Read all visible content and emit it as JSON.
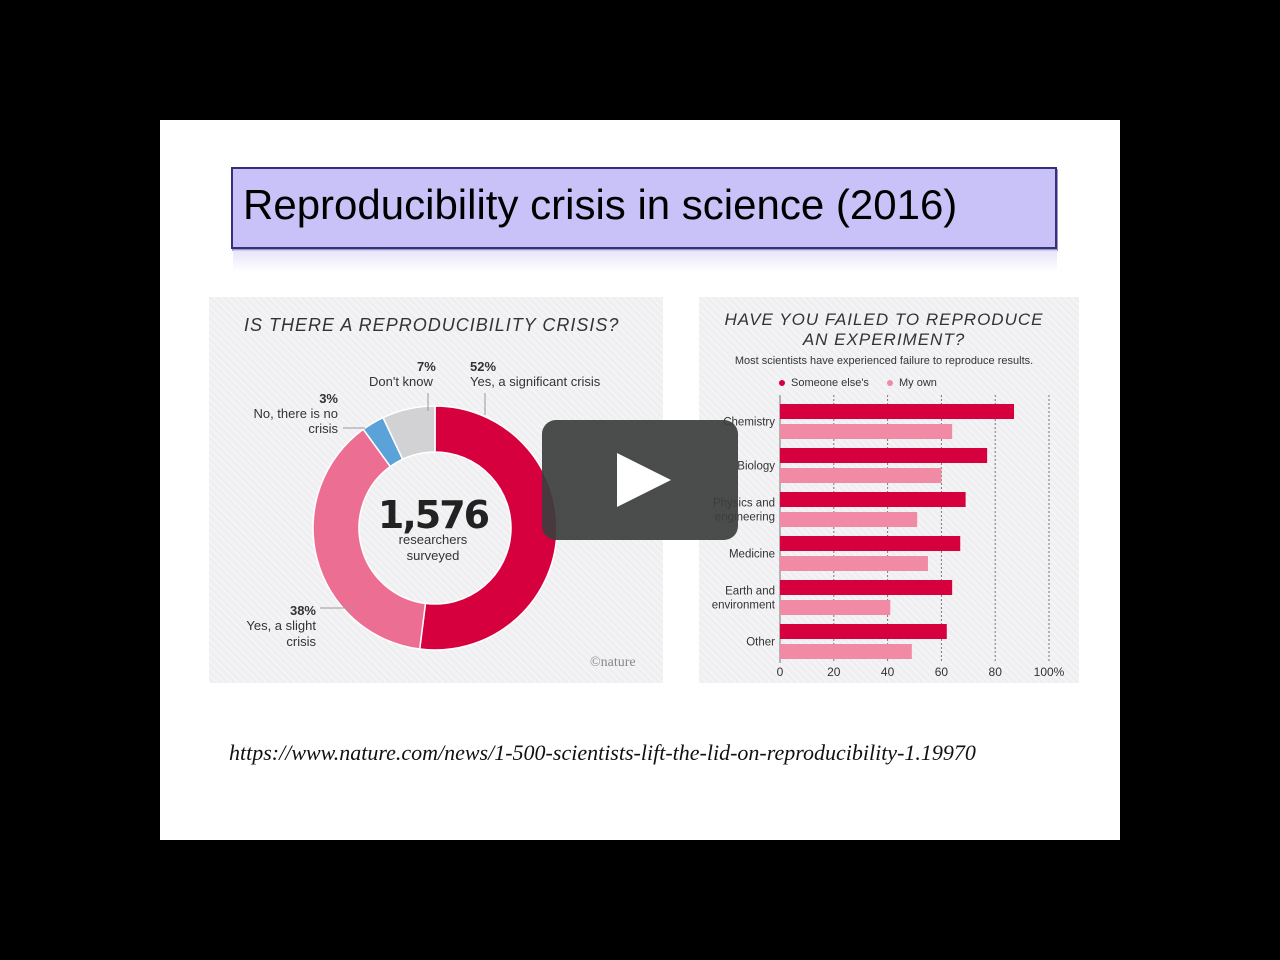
{
  "slide": {
    "title": "Reproducibility crisis in science (2016)",
    "url": "https://www.nature.com/news/1-500-scientists-lift-the-lid-on-reproducibility-1.19970"
  },
  "colors": {
    "significant": "#d6003f",
    "slight": "#ec6f93",
    "no_crisis": "#5ba2d8",
    "dont_know": "#d2d2d4",
    "someone_else": "#d6003f",
    "my_own": "#f08aa5",
    "title_bg": "#c8c2f8"
  },
  "chart_data": [
    {
      "type": "pie",
      "title": "IS THERE A REPRODUCIBILITY CRISIS?",
      "center_value": "1,576",
      "center_label": [
        "researchers",
        "surveyed"
      ],
      "slices": [
        {
          "pct_label": "52%",
          "label": "Yes, a significant crisis",
          "value": 52
        },
        {
          "pct_label": "38%",
          "label_lines": [
            "Yes, a slight",
            "crisis"
          ],
          "value": 38
        },
        {
          "pct_label": "3%",
          "label_lines": [
            "No, there is no",
            "crisis"
          ],
          "value": 3
        },
        {
          "pct_label": "7%",
          "label": "Don't know",
          "value": 7
        }
      ],
      "credit": "©nature"
    },
    {
      "type": "bar",
      "title_lines": [
        "HAVE YOU FAILED TO REPRODUCE",
        "AN EXPERIMENT?"
      ],
      "subtitle": "Most scientists have experienced failure to reproduce results.",
      "series": [
        {
          "name": "Someone else's",
          "values": [
            87,
            77,
            69,
            67,
            64,
            62
          ]
        },
        {
          "name": "My own",
          "values": [
            64,
            60,
            51,
            55,
            41,
            49
          ]
        }
      ],
      "categories": [
        {
          "label_lines": [
            "Chemistry"
          ]
        },
        {
          "label_lines": [
            "Biology"
          ]
        },
        {
          "label_lines": [
            "Physics and",
            "engineering"
          ]
        },
        {
          "label_lines": [
            "Medicine"
          ]
        },
        {
          "label_lines": [
            "Earth and",
            "environment"
          ]
        },
        {
          "label_lines": [
            "Other"
          ]
        }
      ],
      "ticks": [
        "0",
        "20",
        "40",
        "60",
        "80",
        "100%"
      ],
      "tick_values": [
        0,
        20,
        40,
        60,
        80,
        100
      ],
      "xlim": [
        0,
        100
      ],
      "grid": true
    }
  ]
}
